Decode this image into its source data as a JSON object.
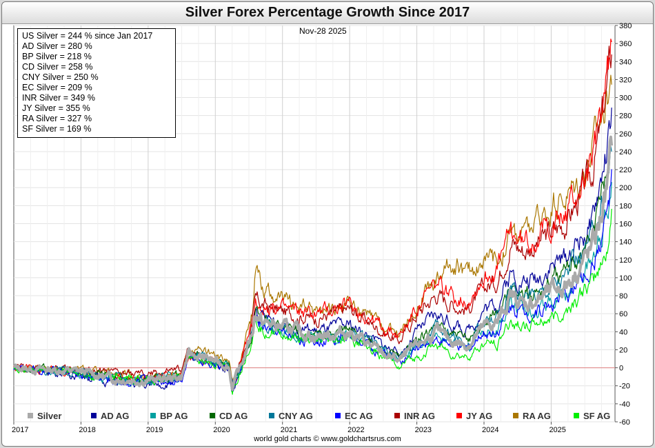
{
  "chart_data": {
    "type": "line",
    "title": "Silver Forex Percentage Growth Since 2017",
    "date_label": "Nov-28  2025",
    "credit": "world gold charts © www.goldchartsrus.com",
    "x_ticks": [
      "2017",
      "2018",
      "2019",
      "2020",
      "2021",
      "2022",
      "2023",
      "2024",
      "2025"
    ],
    "y_ticks": [
      380,
      360,
      340,
      320,
      300,
      280,
      260,
      240,
      220,
      200,
      180,
      160,
      140,
      120,
      100,
      80,
      60,
      40,
      20,
      0,
      -20,
      -40,
      -60
    ],
    "xlim": [
      2017.0,
      2025.95
    ],
    "ylim": [
      -60,
      380
    ],
    "grid": true,
    "zero_line": true,
    "summary": [
      "US Silver = 244 % since Jan 2017",
      "AD Silver = 280 %",
      "BP Silver = 218 %",
      "CD Silver = 258 %",
      "CNY Silver = 250 %",
      "EC Silver = 209 %",
      "INR Silver = 349 %",
      "JY Silver = 355 %",
      "RA Silver = 327 %",
      "SF Silver = 169 %"
    ],
    "x": [
      2017.0,
      2017.5,
      2018.0,
      2018.5,
      2019.0,
      2019.5,
      2019.6,
      2019.9,
      2020.2,
      2020.25,
      2020.4,
      2020.55,
      2020.6,
      2020.7,
      2021.0,
      2021.5,
      2022.0,
      2022.5,
      2022.75,
      2023.0,
      2023.3,
      2023.5,
      2023.75,
      2024.0,
      2024.2,
      2024.4,
      2024.6,
      2024.8,
      2025.0,
      2025.2,
      2025.4,
      2025.6,
      2025.75,
      2025.85,
      2025.9
    ],
    "series": [
      {
        "name": "Silver",
        "color": "#aaaaaa",
        "width": 4,
        "values": [
          0,
          -2,
          -4,
          -12,
          -14,
          -10,
          15,
          10,
          2,
          -20,
          5,
          40,
          62,
          50,
          45,
          35,
          40,
          15,
          8,
          25,
          40,
          30,
          25,
          45,
          50,
          80,
          70,
          75,
          85,
          90,
          110,
          130,
          170,
          210,
          244
        ]
      },
      {
        "name": "AD AG",
        "color": "#000099",
        "width": 1.2,
        "values": [
          0,
          -4,
          -8,
          -16,
          -20,
          -14,
          15,
          8,
          -2,
          -28,
          2,
          40,
          64,
          55,
          50,
          40,
          48,
          25,
          15,
          40,
          60,
          50,
          40,
          65,
          72,
          105,
          95,
          100,
          115,
          120,
          140,
          160,
          210,
          250,
          280
        ]
      },
      {
        "name": "BP AG",
        "color": "#00a0a0",
        "width": 1.2,
        "values": [
          0,
          -3,
          -6,
          -13,
          -15,
          -10,
          14,
          8,
          0,
          -22,
          3,
          38,
          58,
          48,
          42,
          32,
          38,
          18,
          8,
          22,
          35,
          28,
          22,
          40,
          45,
          72,
          62,
          68,
          75,
          80,
          98,
          118,
          150,
          185,
          218
        ]
      },
      {
        "name": "CD AG",
        "color": "#006600",
        "width": 1.2,
        "values": [
          0,
          -3,
          -5,
          -12,
          -14,
          -9,
          16,
          10,
          2,
          -22,
          4,
          40,
          62,
          52,
          44,
          35,
          42,
          20,
          10,
          30,
          48,
          38,
          30,
          52,
          58,
          90,
          80,
          85,
          98,
          105,
          125,
          145,
          190,
          230,
          258
        ]
      },
      {
        "name": "CNY AG",
        "color": "#007799",
        "width": 1.2,
        "values": [
          0,
          -2,
          -5,
          -12,
          -13,
          -9,
          16,
          10,
          2,
          -21,
          4,
          40,
          60,
          50,
          42,
          33,
          40,
          20,
          10,
          28,
          45,
          36,
          30,
          50,
          56,
          88,
          78,
          83,
          95,
          102,
          122,
          142,
          185,
          222,
          250
        ]
      },
      {
        "name": "EC AG",
        "color": "#0000ff",
        "width": 1.2,
        "values": [
          0,
          -3,
          -7,
          -14,
          -16,
          -11,
          13,
          7,
          -1,
          -23,
          2,
          36,
          56,
          46,
          38,
          30,
          36,
          15,
          6,
          20,
          33,
          26,
          20,
          38,
          42,
          70,
          60,
          65,
          72,
          78,
          95,
          112,
          145,
          178,
          209
        ]
      },
      {
        "name": "INR AG",
        "color": "#aa0000",
        "width": 1.2,
        "values": [
          0,
          -1,
          -2,
          -6,
          -8,
          -2,
          20,
          12,
          4,
          -15,
          10,
          50,
          75,
          70,
          62,
          55,
          65,
          40,
          30,
          60,
          82,
          72,
          65,
          88,
          98,
          140,
          130,
          138,
          150,
          160,
          185,
          215,
          270,
          320,
          349
        ]
      },
      {
        "name": "JY AG",
        "color": "#ff0000",
        "width": 1.2,
        "values": [
          0,
          -2,
          -5,
          -10,
          -14,
          -8,
          12,
          8,
          0,
          -20,
          8,
          48,
          72,
          68,
          65,
          60,
          70,
          45,
          35,
          68,
          92,
          82,
          75,
          100,
          110,
          150,
          138,
          148,
          160,
          168,
          195,
          225,
          280,
          330,
          355
        ]
      },
      {
        "name": "RA AG",
        "color": "#aa7700",
        "width": 1.2,
        "values": [
          0,
          -1,
          -2,
          -8,
          -10,
          -4,
          24,
          16,
          6,
          -15,
          18,
          60,
          120,
          90,
          75,
          62,
          70,
          45,
          38,
          72,
          100,
          118,
          105,
          120,
          118,
          150,
          148,
          160,
          180,
          190,
          205,
          240,
          280,
          310,
          327
        ]
      },
      {
        "name": "SF AG",
        "color": "#00ee00",
        "width": 1.2,
        "values": [
          0,
          -2,
          -5,
          -12,
          -13,
          -9,
          12,
          6,
          -2,
          -24,
          1,
          34,
          54,
          44,
          36,
          28,
          33,
          12,
          3,
          12,
          26,
          16,
          12,
          25,
          28,
          52,
          45,
          50,
          55,
          62,
          78,
          92,
          115,
          140,
          169
        ]
      }
    ]
  }
}
